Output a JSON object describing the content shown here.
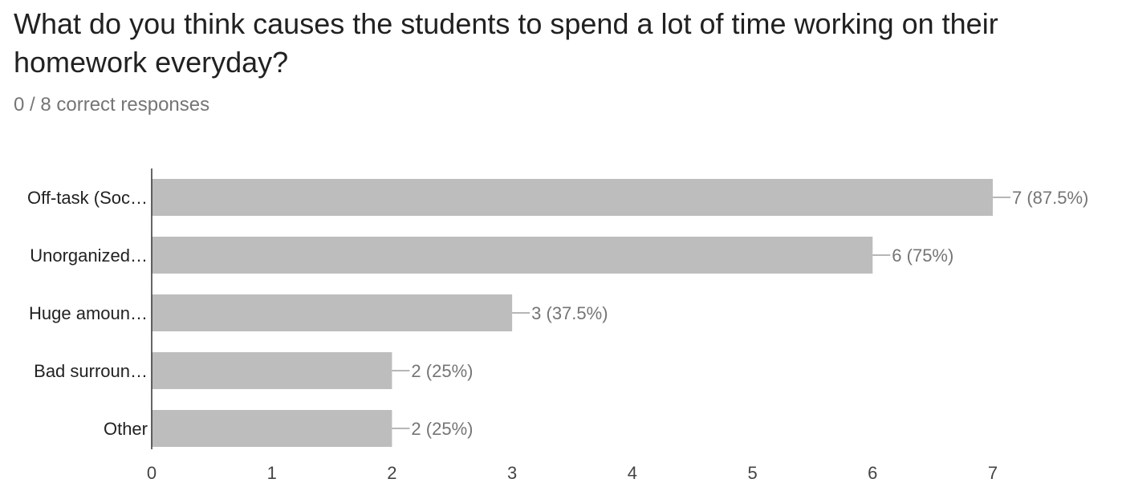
{
  "question": {
    "title": "What do you think causes the students to spend a lot of time working on their homework everyday?",
    "score": "0 / 8 correct responses"
  },
  "chart_data": {
    "type": "bar",
    "orientation": "horizontal",
    "categories": [
      "Off-task (Soc…",
      "Unorganized…",
      "Huge amoun…",
      "Bad surroun…",
      "Other"
    ],
    "values": [
      7,
      6,
      3,
      2,
      2
    ],
    "data_labels": [
      "7 (87.5%)",
      "6 (75%)",
      "3 (37.5%)",
      "2 (25%)",
      "2 (25%)"
    ],
    "xlim": [
      0,
      7
    ],
    "xticks": [
      0,
      1,
      2,
      3,
      4,
      5,
      6,
      7
    ],
    "grid": false,
    "legend": "none",
    "bar_color": "#bdbdbd"
  }
}
